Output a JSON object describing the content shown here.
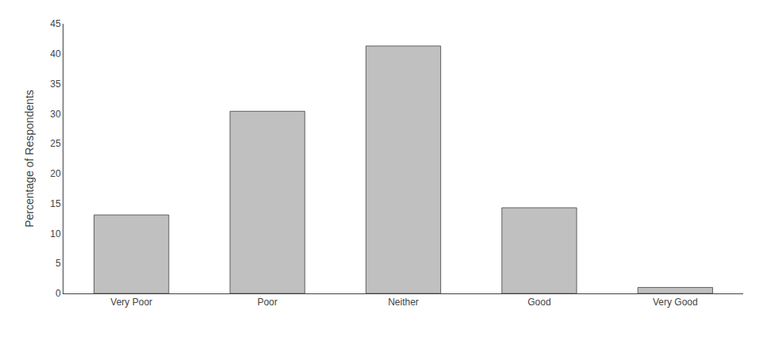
{
  "chart_data": {
    "type": "bar",
    "categories": [
      "Very Poor",
      "Poor",
      "Neither",
      "Good",
      "Very Good"
    ],
    "values": [
      13.1,
      30.4,
      41.3,
      14.3,
      1.0
    ],
    "color": "#c0c0c0",
    "ylabel": "Percentage of Respondents",
    "ylim": [
      0,
      45
    ],
    "yticks": [
      0,
      5,
      10,
      15,
      20,
      25,
      30,
      35,
      40,
      45
    ],
    "grid": false
  }
}
